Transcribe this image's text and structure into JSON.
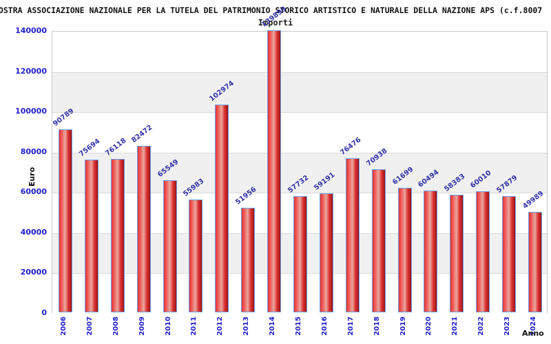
{
  "title": "NOSTRA ASSOCIAZIONE NAZIONALE PER LA TUTELA DEL PATRIMONIO STORICO ARTISTICO E NATURALE DELLA NAZIONE APS (c.f.8007",
  "chart_data": {
    "type": "bar",
    "title": "Importi",
    "xlabel": "Anno",
    "ylabel": "Euro",
    "categories": [
      "2006",
      "2007",
      "2008",
      "2009",
      "2010",
      "2011",
      "2012",
      "2013",
      "2014",
      "2015",
      "2016",
      "2017",
      "2018",
      "2019",
      "2020",
      "2021",
      "2022",
      "2023",
      "2024"
    ],
    "values": [
      90789,
      75694,
      76118,
      82472,
      65549,
      55983,
      102974,
      51956,
      139899,
      57732,
      59191,
      76476,
      70938,
      61699,
      60494,
      58383,
      60010,
      57879,
      49989
    ],
    "ylim": [
      0,
      140000
    ],
    "ytick_step": 20000,
    "grid": "horizontal-bands-alternating",
    "legend": "none",
    "colors": {
      "bar_border": "#6aa0e8",
      "bar_red": "#e03434",
      "bar_mid": "#e8a89e",
      "bar_dark": "#9c1414",
      "tick_label": "#1f1fcc",
      "value_label": "#3434a8",
      "band_gray": "#f0f0f0",
      "grid_line": "#d9d9d9",
      "band_white": "#ffffff"
    }
  }
}
